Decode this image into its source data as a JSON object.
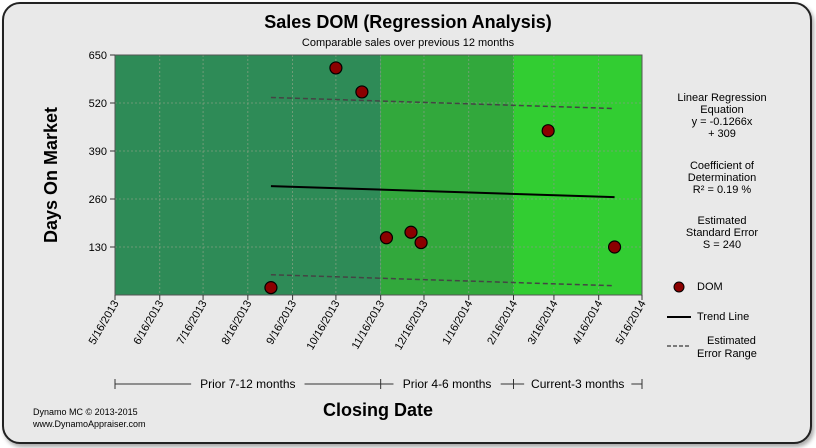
{
  "chart_data": {
    "type": "scatter",
    "title": "Sales DOM (Regression Analysis)",
    "subtitle": "Comparable sales over previous 12 months",
    "xlabel": "Closing Date",
    "ylabel": "Days On Market",
    "ylim": [
      0,
      650
    ],
    "yticks": [
      130,
      260,
      390,
      520,
      650
    ],
    "xticks": [
      "5/16/2013",
      "6/16/2013",
      "7/16/2013",
      "8/16/2013",
      "9/16/2013",
      "10/16/2013",
      "11/16/2013",
      "12/16/2013",
      "1/16/2014",
      "2/16/2014",
      "3/16/2014",
      "4/16/2014",
      "5/16/2014"
    ],
    "xlim": [
      "2013-05-16",
      "2014-05-16"
    ],
    "series": [
      {
        "name": "DOM",
        "color": "#8b0000",
        "points": [
          {
            "x": "2013-09-01",
            "y": 20
          },
          {
            "x": "2013-10-16",
            "y": 615
          },
          {
            "x": "2013-11-03",
            "y": 550
          },
          {
            "x": "2013-11-20",
            "y": 155
          },
          {
            "x": "2013-12-07",
            "y": 170
          },
          {
            "x": "2013-12-14",
            "y": 142
          },
          {
            "x": "2014-03-12",
            "y": 445
          },
          {
            "x": "2014-04-27",
            "y": 130
          }
        ]
      }
    ],
    "trend_line": {
      "name": "Trend Line",
      "x_start": "2013-09-01",
      "x_end": "2014-04-27",
      "y_start": 295,
      "y_end": 265
    },
    "error_range": {
      "name": "Estimated Error Range",
      "upper": {
        "x_start": "2013-09-01",
        "x_end": "2014-04-27",
        "y_start": 535,
        "y_end": 505
      },
      "lower": {
        "x_start": "2013-09-01",
        "x_end": "2014-04-27",
        "y_start": 55,
        "y_end": 25
      }
    },
    "periods": [
      {
        "label": "Prior 7-12 months",
        "start": "2013-05-16",
        "end": "2013-11-16",
        "color": "#2e8b57"
      },
      {
        "label": "Prior 4-6 months",
        "start": "2013-11-16",
        "end": "2014-02-16",
        "color": "#32a83c"
      },
      {
        "label": "Current-3 months",
        "start": "2014-02-16",
        "end": "2014-05-16",
        "color": "#32cd32"
      }
    ],
    "grid": true,
    "legend_position": "right"
  },
  "stats": {
    "regression_title": "Linear Regression Equation",
    "regression_eq_line1": "y = -0.1266x",
    "regression_eq_line2": "+ 309",
    "coef_title": "Coefficient of Determination",
    "coef_value": "R² = 0.19 %",
    "error_title": "Estimated Standard Error",
    "error_value": "S = 240"
  },
  "legend": {
    "dom": "DOM",
    "trend": "Trend Line",
    "error_line1": "Estimated",
    "error_line2": "Error Range"
  },
  "credit": {
    "line1": "Dynamo MC   © 2013-2015",
    "line2": "www.DynamoAppraiser.com"
  }
}
